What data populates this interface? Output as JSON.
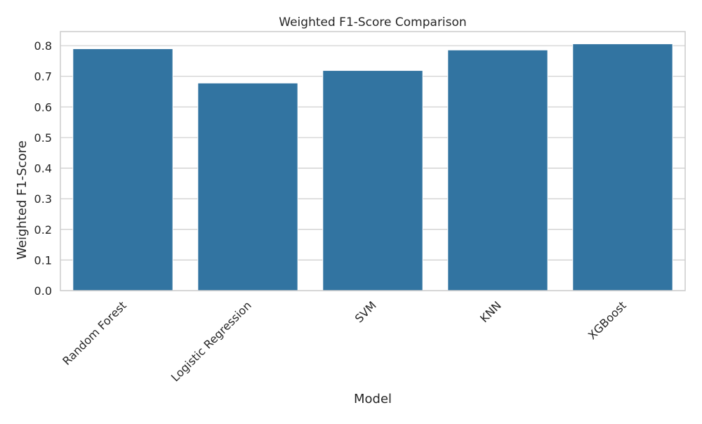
{
  "chart_data": {
    "type": "bar",
    "title": "Weighted F1-Score Comparison",
    "xlabel": "Model",
    "ylabel": "Weighted F1-Score",
    "categories": [
      "Random Forest",
      "Logistic Regression",
      "SVM",
      "KNN",
      "XGBoost"
    ],
    "values": [
      0.79,
      0.678,
      0.719,
      0.786,
      0.806
    ],
    "ylim": [
      0,
      0.846
    ],
    "yticks": [
      0.0,
      0.1,
      0.2,
      0.3,
      0.4,
      0.5,
      0.6,
      0.7,
      0.8
    ],
    "ytick_labels": [
      "0.0",
      "0.1",
      "0.2",
      "0.3",
      "0.4",
      "0.5",
      "0.6",
      "0.7",
      "0.8"
    ],
    "grid": "horizontal",
    "bar_color": "#3274a1",
    "gridline_color": "#cccccc",
    "axes_edge_color": "#cccccc",
    "text_color": "#262626",
    "xtick_rotation_deg": 45
  }
}
